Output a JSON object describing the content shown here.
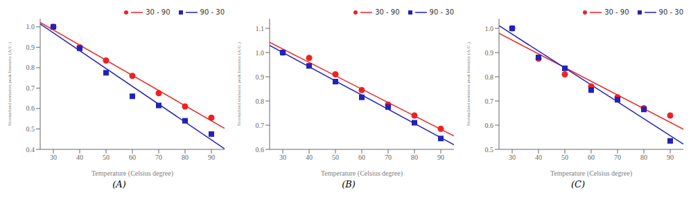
{
  "chart_data": [
    {
      "type": "scatter",
      "annotations": [
        "(A)"
      ],
      "x_label": "Temperature (Celsius degree)",
      "y_label": "Normalized emission peak Intensity (A.U.)",
      "x": [
        30,
        40,
        50,
        60,
        70,
        80,
        90
      ],
      "xlim": [
        25,
        95
      ],
      "xticks": [
        30,
        40,
        50,
        60,
        70,
        80,
        90
      ],
      "ylim": [
        0.4,
        1.04
      ],
      "yticks": [
        0.4,
        0.5,
        0.6,
        0.7,
        0.8,
        0.9,
        {
          "value": 1.0,
          "label": "1.0"
        }
      ],
      "grid": false,
      "legend": "upper right",
      "series": [
        {
          "name": "30 - 90",
          "type": "line",
          "color": "#EE2222",
          "x": [
            25,
            95
          ],
          "values": [
            1.021517857,
            0.502767857
          ]
        },
        {
          "name": "90 - 30",
          "type": "line",
          "color": "#2222BB",
          "x": [
            25,
            95
          ],
          "values": [
            1.014196429,
            0.402946429
          ]
        },
        {
          "name": "30 - 90",
          "type": "scatter",
          "color": "#EE2222",
          "marker": "circle",
          "values": [
            1.0,
            0.9,
            0.835,
            0.76,
            0.675,
            0.61,
            0.555
          ]
        },
        {
          "name": "90 - 30",
          "type": "scatter",
          "color": "#2222BB",
          "marker": "square",
          "values": [
            1.0,
            0.895,
            0.775,
            0.66,
            0.615,
            0.54,
            0.475
          ]
        }
      ]
    },
    {
      "type": "scatter",
      "annotations": [
        "(B)"
      ],
      "x_label": "Temperature (Celsius degree)",
      "y_label": "Normalized emission peak Intensity (A.U.)",
      "x": [
        30,
        40,
        50,
        60,
        70,
        80,
        90
      ],
      "xlim": [
        25,
        95
      ],
      "xticks": [
        30,
        40,
        50,
        60,
        70,
        80,
        90
      ],
      "ylim": [
        0.6,
        1.14
      ],
      "yticks": [
        0.6,
        0.7,
        0.8,
        0.9,
        {
          "value": 1.0,
          "label": "1.0"
        },
        1.1
      ],
      "grid": false,
      "legend": "upper right",
      "series": [
        {
          "name": "30 - 90",
          "type": "line",
          "color": "#EE2222",
          "x": [
            25,
            95
          ],
          "values": [
            1.04225,
            0.65575
          ]
        },
        {
          "name": "90 - 30",
          "type": "line",
          "color": "#2222BB",
          "x": [
            25,
            95
          ],
          "values": [
            1.029285714,
            0.619285714
          ]
        },
        {
          "name": "30 - 90",
          "type": "scatter",
          "color": "#EE2222",
          "marker": "circle",
          "values": [
            1.0,
            0.978,
            0.91,
            0.845,
            0.785,
            0.74,
            0.685
          ]
        },
        {
          "name": "90 - 30",
          "type": "scatter",
          "color": "#2222BB",
          "marker": "square",
          "values": [
            1.0,
            0.945,
            0.88,
            0.815,
            0.775,
            0.71,
            0.645
          ]
        }
      ]
    },
    {
      "type": "scatter",
      "annotations": [
        "(C)"
      ],
      "x_label": "Temperature (Celsius degree)",
      "y_label": "Normalized emission peak Intensity (A.U.)",
      "x": [
        30,
        40,
        50,
        60,
        70,
        80,
        90
      ],
      "xlim": [
        25,
        95
      ],
      "xticks": [
        30,
        40,
        50,
        60,
        70,
        80,
        90
      ],
      "ylim": [
        0.5,
        1.04
      ],
      "yticks": [
        0.5,
        0.6,
        0.7,
        0.8,
        0.9,
        {
          "value": 1.0,
          "label": "1.0"
        }
      ],
      "grid": false,
      "legend": "upper right",
      "series": [
        {
          "name": "30 - 90",
          "type": "line",
          "color": "#EE2222",
          "x": [
            25,
            95
          ],
          "values": [
            0.979553571,
            0.583303571
          ]
        },
        {
          "name": "90 - 30",
          "type": "line",
          "color": "#2222BB",
          "x": [
            25,
            95
          ],
          "values": [
            1.010803571,
            0.522053571
          ]
        },
        {
          "name": "30 - 90",
          "type": "scatter",
          "color": "#EE2222",
          "marker": "circle",
          "values": [
            1.0,
            0.875,
            0.81,
            0.76,
            0.715,
            0.67,
            0.64
          ]
        },
        {
          "name": "90 - 30",
          "type": "scatter",
          "color": "#2222BB",
          "marker": "square",
          "values": [
            1.0,
            0.88,
            0.835,
            0.745,
            0.705,
            0.665,
            0.535
          ]
        }
      ]
    }
  ]
}
